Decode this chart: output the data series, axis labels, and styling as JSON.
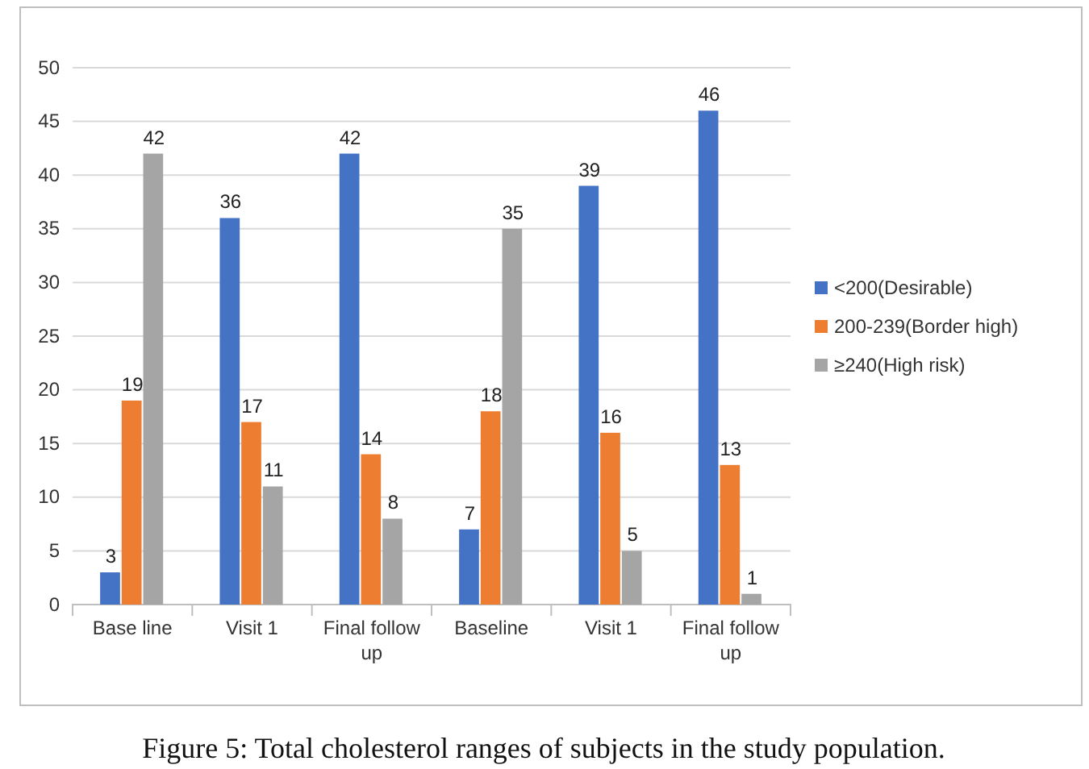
{
  "chart_data": {
    "type": "bar",
    "title": "Figure 5: Total cholesterol ranges of subjects in the study population.",
    "categories": [
      "Base line",
      "Visit 1",
      "Final follow up",
      "Baseline",
      "Visit 1",
      "Final follow up"
    ],
    "series": [
      {
        "name": "<200(Desirable)",
        "color": "#4472c4",
        "values": [
          3,
          36,
          42,
          7,
          39,
          46
        ]
      },
      {
        "name": "200-239(Border high)",
        "color": "#ed7d31",
        "values": [
          19,
          17,
          14,
          18,
          16,
          13
        ]
      },
      {
        "name": "≥240(High risk)",
        "color": "#a5a5a5",
        "values": [
          42,
          11,
          8,
          35,
          5,
          1
        ]
      }
    ],
    "ylim": [
      0,
      50
    ],
    "yticks": [
      0,
      5,
      10,
      15,
      20,
      25,
      30,
      35,
      40,
      45,
      50
    ],
    "grid": "y",
    "legend": "right",
    "data_labels": true
  }
}
